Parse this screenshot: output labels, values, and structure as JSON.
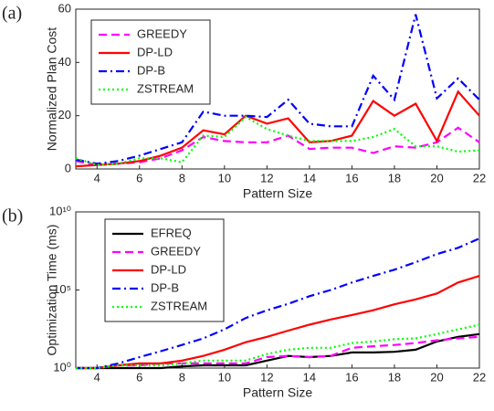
{
  "chart_data": [
    {
      "type": "line",
      "panel_label": "(a)",
      "x_label": "Pattern Size",
      "y_label": "Normalized Plan Cost",
      "x": [
        3,
        4,
        5,
        6,
        7,
        8,
        9,
        10,
        11,
        12,
        13,
        14,
        15,
        16,
        17,
        18,
        19,
        20,
        21,
        22
      ],
      "xlim": [
        3,
        22
      ],
      "xticks": [
        4,
        6,
        8,
        10,
        12,
        14,
        16,
        18,
        20,
        22
      ],
      "ylim": [
        0,
        60
      ],
      "yticks": [
        0,
        20,
        40,
        60
      ],
      "log_y": false,
      "legend": "upper left",
      "series": [
        {
          "name": "GREEDY",
          "color": "#ff00ff",
          "style": "dashed",
          "values": [
            3,
            1.5,
            2,
            2.5,
            4,
            7,
            12,
            10.5,
            10,
            10,
            12.5,
            7.5,
            8,
            8,
            6,
            8.5,
            8,
            10,
            15.5,
            10
          ]
        },
        {
          "name": "DP-LD",
          "color": "#ff0000",
          "style": "solid",
          "values": [
            1,
            1.5,
            2,
            3,
            5,
            8,
            14.5,
            13,
            20,
            17,
            19,
            10,
            10.5,
            12.5,
            25.5,
            20,
            24.5,
            10.5,
            29,
            20
          ]
        },
        {
          "name": "DP-B",
          "color": "#0000ff",
          "style": "dashdot",
          "values": [
            3.5,
            2,
            3,
            5,
            7.5,
            10,
            21.5,
            20,
            20,
            19.5,
            26,
            17,
            16,
            16,
            35,
            26,
            58,
            26.5,
            34,
            26
          ]
        },
        {
          "name": "ZSTREAM",
          "color": "#00ff00",
          "style": "dotted",
          "values": [
            4,
            1.5,
            2,
            4,
            4,
            2.5,
            12.5,
            12,
            19.5,
            15,
            12.5,
            10.5,
            10.5,
            10.5,
            12,
            15,
            8.5,
            8.5,
            6.5,
            7
          ]
        }
      ]
    },
    {
      "type": "line",
      "panel_label": "(b)",
      "x_label": "Pattern Size",
      "y_label": "Optimization Time (ms)",
      "x": [
        3,
        4,
        5,
        6,
        7,
        8,
        9,
        10,
        11,
        12,
        13,
        14,
        15,
        16,
        17,
        18,
        19,
        20,
        21,
        22
      ],
      "xlim": [
        3,
        22
      ],
      "xticks": [
        4,
        6,
        8,
        10,
        12,
        14,
        16,
        18,
        20,
        22
      ],
      "ylim": [
        1,
        10000000000
      ],
      "yticks": [
        {
          "value": 1,
          "label": "10⁰"
        },
        {
          "value": 100000,
          "label": "10⁵"
        },
        {
          "value": 10000000000,
          "label": "10¹⁰"
        }
      ],
      "log_y": true,
      "legend": "upper left",
      "series": [
        {
          "name": "EFREQ",
          "color": "#000000",
          "style": "solid",
          "values": [
            1,
            1,
            1,
            1,
            1,
            1.3,
            1.5,
            1.5,
            1.5,
            3,
            6,
            5,
            6,
            10,
            10,
            11,
            15,
            50,
            100,
            150
          ]
        },
        {
          "name": "GREEDY",
          "color": "#ff00ff",
          "style": "dashed",
          "values": [
            1,
            1,
            1.5,
            1.5,
            2,
            2,
            2,
            2,
            2,
            5,
            6,
            5,
            6,
            20,
            25,
            30,
            40,
            60,
            80,
            100
          ]
        },
        {
          "name": "DP-LD",
          "color": "#ff0000",
          "style": "solid",
          "values": [
            1,
            1,
            1.5,
            2,
            2,
            3,
            6,
            15,
            45,
            100,
            250,
            600,
            1300,
            2500,
            5000,
            12000,
            25000,
            60000,
            300000,
            800000
          ]
        },
        {
          "name": "DP-B",
          "color": "#0000ff",
          "style": "dashdot",
          "values": [
            1,
            1,
            2,
            5,
            12,
            30,
            80,
            300,
            1600,
            5000,
            13000,
            40000,
            100000,
            300000,
            800000,
            2000000,
            6000000,
            20000000,
            50000000,
            200000000
          ]
        },
        {
          "name": "ZSTREAM",
          "color": "#00ff00",
          "style": "dotted",
          "values": [
            1,
            1,
            1.5,
            1.5,
            1.5,
            2,
            3,
            3,
            3,
            8,
            15,
            20,
            20,
            40,
            50,
            70,
            80,
            150,
            300,
            600
          ]
        }
      ]
    }
  ]
}
